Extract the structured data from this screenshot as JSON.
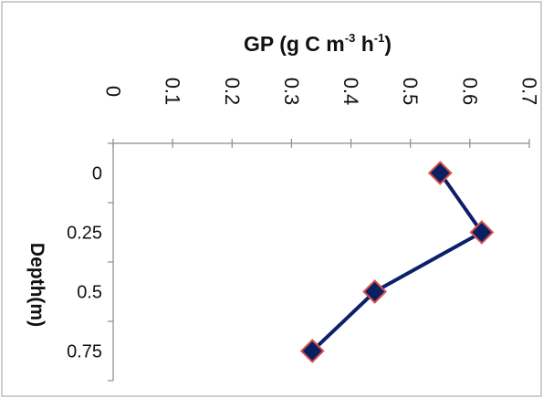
{
  "chart_data": {
    "type": "line",
    "orientation": "depth-profile",
    "x_axis": {
      "title_base": "GP (g C m",
      "title_sup1": "-3",
      "title_mid": " h",
      "title_sup2": "-1",
      "title_end": ")",
      "position": "top",
      "range": [
        0,
        0.7
      ],
      "ticks": [
        "0",
        "0.1",
        "0.2",
        "0.3",
        "0.4",
        "0.5",
        "0.6",
        "0.7"
      ],
      "tick_values": [
        0,
        0.1,
        0.2,
        0.3,
        0.4,
        0.5,
        0.6,
        0.7
      ]
    },
    "y_axis": {
      "title": "Depth(m)",
      "inverted": true,
      "range": [
        -0.125,
        0.875
      ],
      "ticks": [
        "0",
        "0.25",
        "0.5",
        "0.75"
      ],
      "tick_values": [
        0,
        0.25,
        0.5,
        0.75
      ]
    },
    "series": [
      {
        "points": [
          {
            "depth": 0,
            "gp": 0.55
          },
          {
            "depth": 0.25,
            "gp": 0.62
          },
          {
            "depth": 0.5,
            "gp": 0.44
          },
          {
            "depth": 0.75,
            "gp": 0.335
          }
        ],
        "line_color": "#0b1f6b",
        "marker": "diamond",
        "marker_fill": "#0b2060",
        "marker_stroke": "#d9534f"
      }
    ],
    "grid": false,
    "legend": "none",
    "border_color": "#bfbfbf"
  }
}
